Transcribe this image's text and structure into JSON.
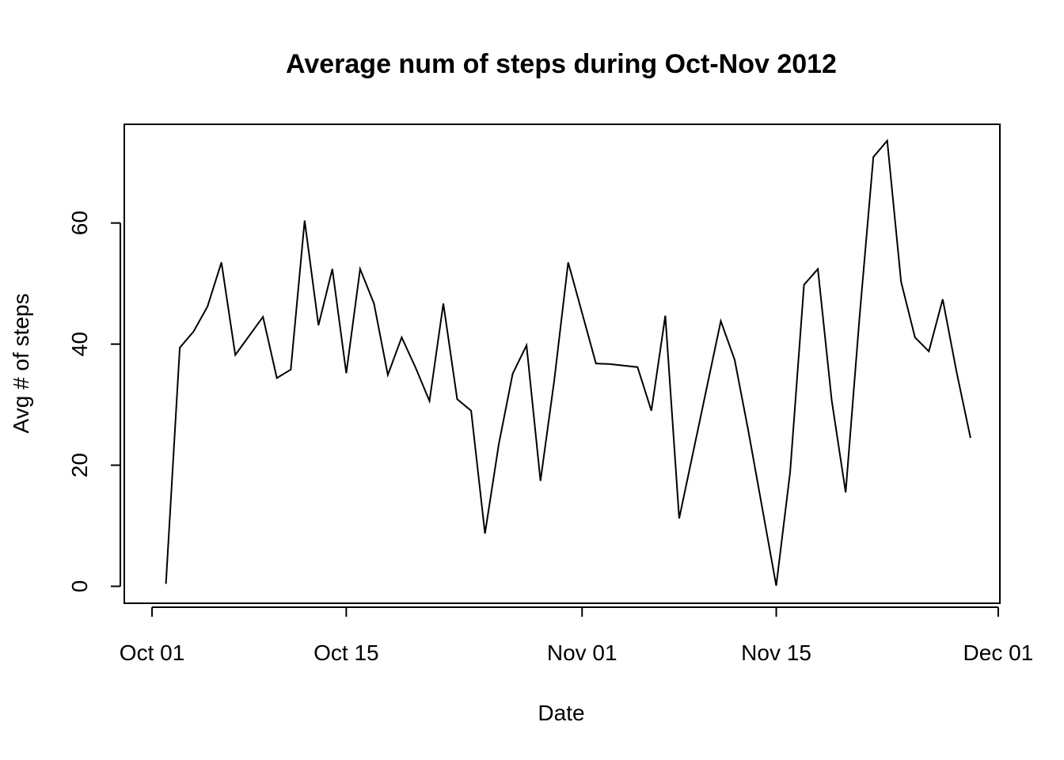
{
  "chart_data": {
    "type": "line",
    "title": "Average num of steps during Oct-Nov 2012",
    "xlabel": "Date",
    "ylabel": "Avg # of steps",
    "x_ticks": [
      {
        "date": "2012-10-01",
        "label": "Oct 01"
      },
      {
        "date": "2012-10-15",
        "label": "Oct 15"
      },
      {
        "date": "2012-11-01",
        "label": "Nov 01"
      },
      {
        "date": "2012-11-15",
        "label": "Nov 15"
      },
      {
        "date": "2012-12-01",
        "label": "Dec 01"
      }
    ],
    "y_ticks": [
      0,
      20,
      40,
      60
    ],
    "xlim": [
      "2012-09-29",
      "2012-12-01"
    ],
    "ylim": [
      -2.8,
      76.3
    ],
    "grid": false,
    "line_color": "#000000",
    "series": [
      {
        "x": [
          "2012-10-02",
          "2012-10-03",
          "2012-10-04",
          "2012-10-05",
          "2012-10-06",
          "2012-10-07",
          "2012-10-09",
          "2012-10-10",
          "2012-10-11",
          "2012-10-12",
          "2012-10-13",
          "2012-10-14",
          "2012-10-15",
          "2012-10-16",
          "2012-10-17",
          "2012-10-18",
          "2012-10-19",
          "2012-10-20",
          "2012-10-21",
          "2012-10-22",
          "2012-10-23",
          "2012-10-24",
          "2012-10-25",
          "2012-10-26",
          "2012-10-27",
          "2012-10-28",
          "2012-10-29",
          "2012-10-30",
          "2012-10-31",
          "2012-11-02",
          "2012-11-03",
          "2012-11-05",
          "2012-11-06",
          "2012-11-07",
          "2012-11-08",
          "2012-11-11",
          "2012-11-12",
          "2012-11-13",
          "2012-11-15",
          "2012-11-16",
          "2012-11-17",
          "2012-11-18",
          "2012-11-19",
          "2012-11-20",
          "2012-11-21",
          "2012-11-22",
          "2012-11-23",
          "2012-11-24",
          "2012-11-25",
          "2012-11-26",
          "2012-11-27",
          "2012-11-28",
          "2012-11-29"
        ],
        "values": [
          0.4,
          39.4,
          42.1,
          46.2,
          53.5,
          38.2,
          44.5,
          34.4,
          35.8,
          60.4,
          43.1,
          52.4,
          35.2,
          52.4,
          46.7,
          34.9,
          41.1,
          36.1,
          30.6,
          46.7,
          30.9,
          29.0,
          8.7,
          23.5,
          35.1,
          39.8,
          17.4,
          34.1,
          53.5,
          36.8,
          36.7,
          36.2,
          29.0,
          44.7,
          11.2,
          43.8,
          37.4,
          25.5,
          0.1,
          18.9,
          49.8,
          52.4,
          30.7,
          15.5,
          44.4,
          70.9,
          73.6,
          50.3,
          41.1,
          38.8,
          47.4,
          35.4,
          24.5
        ]
      }
    ]
  }
}
